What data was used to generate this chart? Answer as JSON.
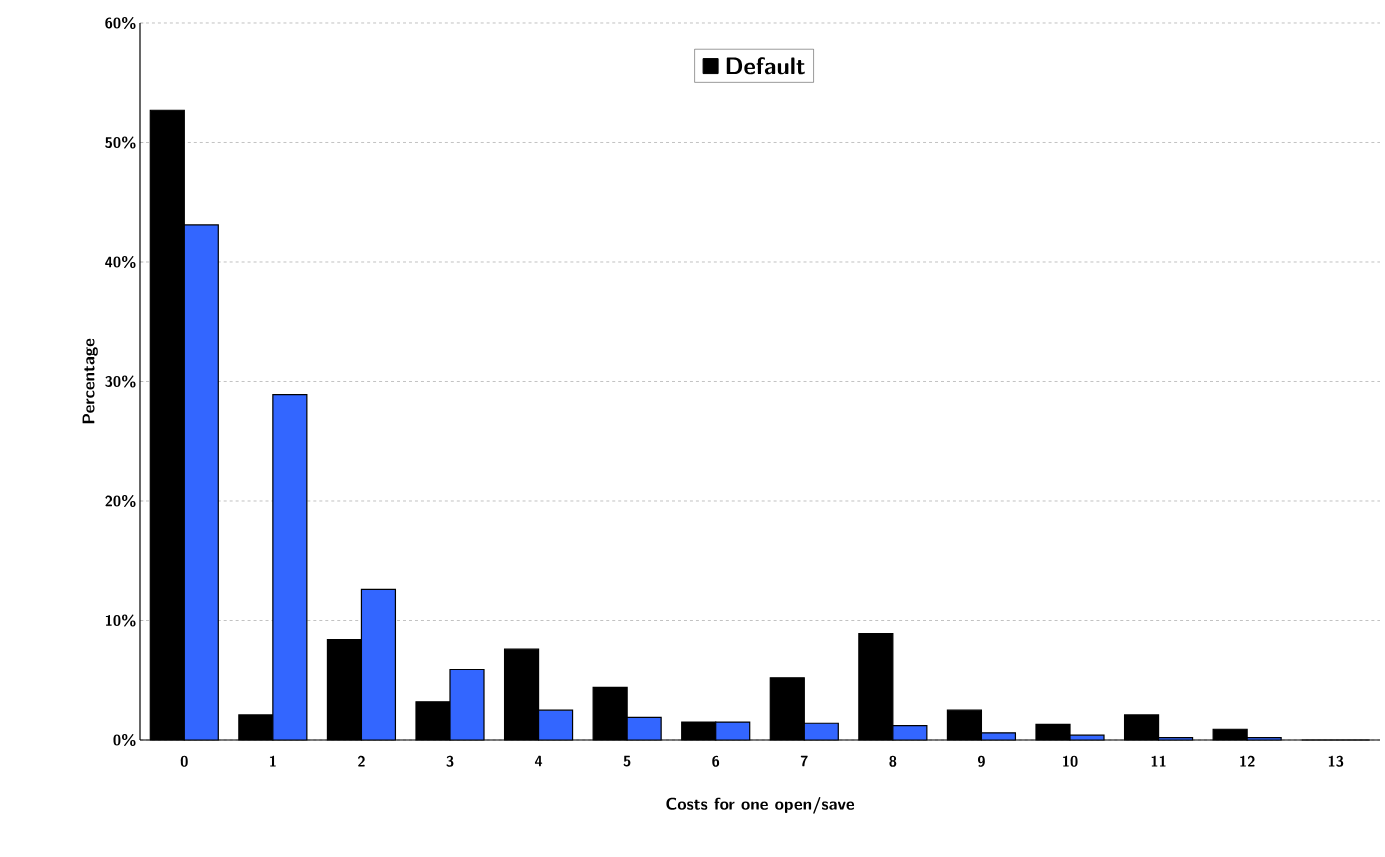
{
  "chart_data": {
    "type": "bar",
    "xlabel": "Costs for one open/save",
    "ylabel": "Percentage",
    "categories": [
      "0",
      "1",
      "2",
      "3",
      "4",
      "5",
      "6",
      "7",
      "8",
      "9",
      "10",
      "11",
      "12",
      "13"
    ],
    "series": [
      {
        "name": "Default",
        "color": "#000000",
        "values": [
          52.7,
          2.1,
          8.4,
          3.2,
          7.6,
          4.4,
          1.5,
          5.2,
          8.9,
          2.5,
          1.3,
          2.1,
          0.9,
          0
        ]
      },
      {
        "color": "#3366ff",
        "values": [
          43.1,
          28.9,
          12.6,
          5.9,
          2.5,
          1.9,
          1.5,
          1.4,
          1.2,
          0.6,
          0.4,
          0.2,
          0.2,
          0
        ]
      }
    ],
    "ylim": [
      0,
      60
    ],
    "yticks": [
      {
        "value": 0,
        "label": "0%"
      },
      {
        "value": 10,
        "label": "10%"
      },
      {
        "value": 20,
        "label": "20%"
      },
      {
        "value": 30,
        "label": "30%"
      },
      {
        "value": 40,
        "label": "40%"
      },
      {
        "value": 50,
        "label": "50%"
      },
      {
        "value": 60,
        "label": "60%"
      }
    ],
    "grid": "y",
    "legend": "top"
  }
}
